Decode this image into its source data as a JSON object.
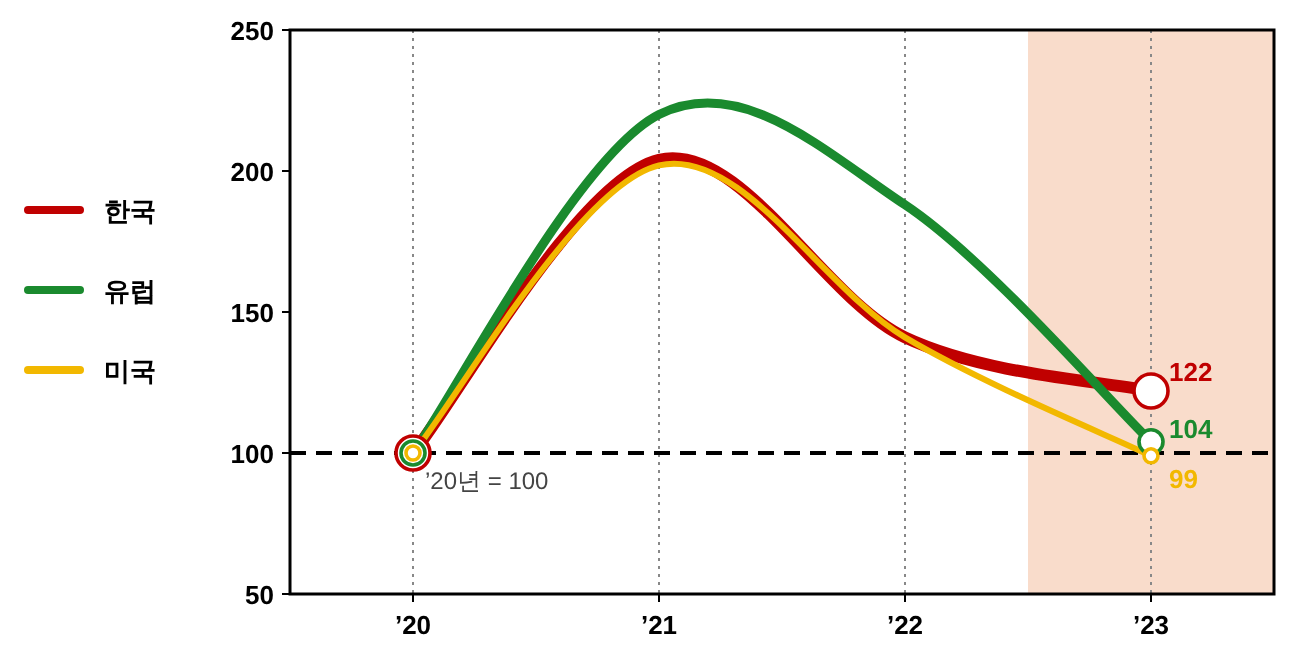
{
  "chart_data": {
    "type": "line",
    "x": [
      2020,
      2021,
      2022,
      2023
    ],
    "series": [
      {
        "name": "한국",
        "color": "#c00000",
        "values": [
          100,
          204,
          141,
          122
        ],
        "value_labels": [
          null,
          null,
          null,
          "122"
        ]
      },
      {
        "name": "유럽",
        "color": "#1a8a2e",
        "values": [
          100,
          220,
          188,
          104
        ],
        "value_labels": [
          null,
          null,
          null,
          "104"
        ]
      },
      {
        "name": "미국",
        "color": "#f2b800",
        "values": [
          100,
          202,
          141,
          99
        ],
        "value_labels": [
          null,
          null,
          null,
          "99"
        ]
      }
    ],
    "xlim": [
      2019.5,
      2023.5
    ],
    "xticks": [
      {
        "value": 2020,
        "label": "’20"
      },
      {
        "value": 2021,
        "label": "’21"
      },
      {
        "value": 2022,
        "label": "’22"
      },
      {
        "value": 2023,
        "label": "’23"
      }
    ],
    "ylim": [
      50,
      250
    ],
    "yticks": [
      50,
      100,
      150,
      200,
      250
    ],
    "ref_lines": [
      {
        "axis": "y",
        "value": 100,
        "color": "#000000",
        "line_style": "dashed"
      }
    ],
    "bands": [
      {
        "axis": "x",
        "from": 2022.5,
        "to": 2023.5,
        "color": "#f9dccb"
      }
    ],
    "annotations": [
      {
        "text": "’20년 = 100",
        "x": 2020,
        "y": 100
      }
    ],
    "grid": "x",
    "legend": "left",
    "marker": "circle",
    "line_style": "solid"
  }
}
